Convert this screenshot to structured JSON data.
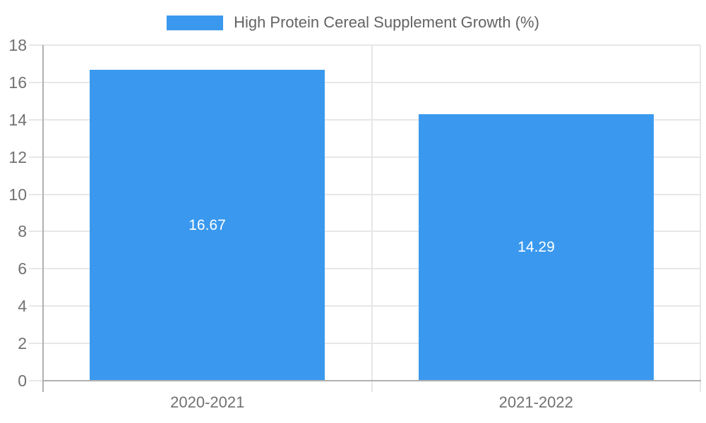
{
  "chart_data": {
    "type": "bar",
    "title": "",
    "legend": {
      "label": "High Protein Cereal Supplement Growth (%)",
      "position": "top-center"
    },
    "categories": [
      "2020-2021",
      "2021-2022"
    ],
    "values": [
      16.67,
      14.29
    ],
    "value_labels": [
      "16.67",
      "14.29"
    ],
    "xlabel": "",
    "ylabel": "",
    "ylim": [
      0,
      18
    ],
    "yticks": [
      0,
      2,
      4,
      6,
      8,
      10,
      12,
      14,
      16,
      18
    ],
    "grid": true,
    "colors": {
      "bar": "#3a99ee",
      "grid": "#e7e7e7",
      "axis": "#b0b0b0",
      "tick_label": "#717171",
      "legend_text": "#636363",
      "value_label": "#ffffff",
      "background": "#ffffff"
    }
  }
}
